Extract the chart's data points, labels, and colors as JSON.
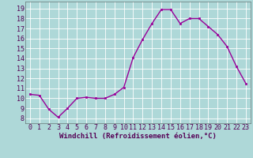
{
  "x": [
    0,
    1,
    2,
    3,
    4,
    5,
    6,
    7,
    8,
    9,
    10,
    11,
    12,
    13,
    14,
    15,
    16,
    17,
    18,
    19,
    20,
    21,
    22,
    23
  ],
  "y": [
    10.4,
    10.3,
    8.9,
    8.1,
    9.0,
    10.0,
    10.1,
    10.0,
    10.0,
    10.4,
    11.1,
    14.1,
    15.9,
    17.5,
    18.9,
    18.9,
    17.5,
    18.0,
    18.0,
    17.2,
    16.4,
    15.2,
    13.2,
    11.5
  ],
  "line_color": "#990099",
  "marker": "s",
  "marker_size": 1.8,
  "line_width": 1.0,
  "bg_color": "#aed8d8",
  "grid_color": "#ffffff",
  "xlabel": "Windchill (Refroidissement éolien,°C)",
  "xlabel_fontsize": 6.5,
  "tick_fontsize": 6.0,
  "ylim": [
    7.5,
    19.7
  ],
  "yticks": [
    8,
    9,
    10,
    11,
    12,
    13,
    14,
    15,
    16,
    17,
    18,
    19
  ],
  "xticks": [
    0,
    1,
    2,
    3,
    4,
    5,
    6,
    7,
    8,
    9,
    10,
    11,
    12,
    13,
    14,
    15,
    16,
    17,
    18,
    19,
    20,
    21,
    22,
    23
  ],
  "xlim": [
    -0.5,
    23.5
  ]
}
